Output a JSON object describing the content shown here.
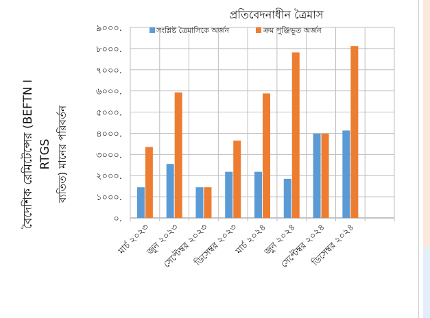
{
  "chart_data": {
    "type": "bar",
    "title": "প্রতিবেদনাধীন ত্রৈমাস",
    "ylabel_lines": [
      "বৈদেশিক রেমিটেন্সের (BEFTN I",
      "RTGS",
      "ব্যতিত) মানের পরিবর্তন"
    ],
    "categories": [
      "মার্চ ২০২৩",
      "জুন ২০২৩",
      "সেপ্টেম্বর ২০২৩",
      "ডিসেম্বর ২০২৩",
      "মার্চ ২০২৪",
      "জুন ২০২৪",
      "সেপ্টেম্বর ২০২৪",
      "ডিসেম্বর ২০২৪",
      ""
    ],
    "series": [
      {
        "name": "সংশ্লিষ্ট ত্রৈমাসিকে অর্জন",
        "color": "#5b9bd5",
        "values": [
          1450,
          2550,
          1450,
          2180,
          2180,
          1850,
          3980,
          4130,
          null
        ]
      },
      {
        "name": "ক্রম পুঞ্জিভূত অর্জন",
        "color": "#ed7d31",
        "values": [
          3350,
          5930,
          1450,
          3650,
          5880,
          7820,
          3980,
          8120,
          null
        ]
      }
    ],
    "ylim": [
      0,
      9000
    ],
    "yticks": [
      0,
      1000,
      2000,
      3000,
      4000,
      5000,
      6000,
      7000,
      8000,
      9000
    ],
    "ytick_labels": [
      "০.",
      "১০০০.",
      "২০০০.",
      "৩০০০.",
      "৪০০০.",
      "৫০০০.",
      "৬০০০.",
      "৭০০০.",
      "৮০০০.",
      "৯০০০."
    ],
    "grid": true,
    "legend_position": "top"
  }
}
